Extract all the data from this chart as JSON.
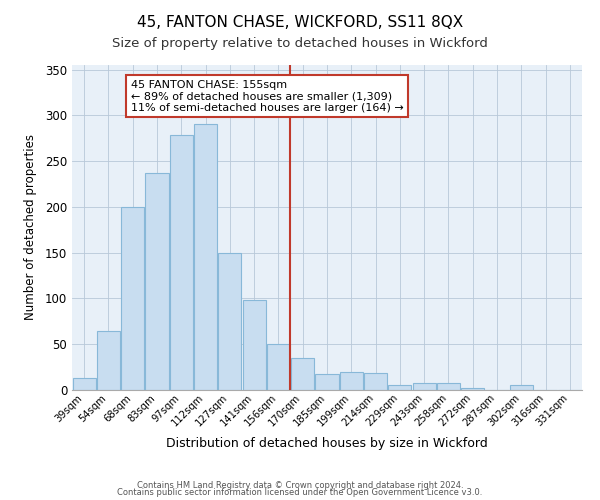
{
  "title": "45, FANTON CHASE, WICKFORD, SS11 8QX",
  "subtitle": "Size of property relative to detached houses in Wickford",
  "xlabel": "Distribution of detached houses by size in Wickford",
  "ylabel": "Number of detached properties",
  "footer_line1": "Contains HM Land Registry data © Crown copyright and database right 2024.",
  "footer_line2": "Contains public sector information licensed under the Open Government Licence v3.0.",
  "bar_labels": [
    "39sqm",
    "54sqm",
    "68sqm",
    "83sqm",
    "97sqm",
    "112sqm",
    "127sqm",
    "141sqm",
    "156sqm",
    "170sqm",
    "185sqm",
    "199sqm",
    "214sqm",
    "229sqm",
    "243sqm",
    "258sqm",
    "272sqm",
    "287sqm",
    "302sqm",
    "316sqm",
    "331sqm"
  ],
  "bar_values": [
    13,
    64,
    200,
    237,
    278,
    291,
    150,
    98,
    50,
    35,
    18,
    20,
    19,
    5,
    8,
    8,
    2,
    0,
    5,
    0,
    0
  ],
  "bar_color": "#c8ddf0",
  "bar_edge_color": "#88b8d8",
  "plot_bg_color": "#e8f0f8",
  "highlight_color": "#c0392b",
  "annotation_title": "45 FANTON CHASE: 155sqm",
  "annotation_line1": "← 89% of detached houses are smaller (1,309)",
  "annotation_line2": "11% of semi-detached houses are larger (164) →",
  "annotation_box_color": "#ffffff",
  "annotation_box_edge": "#c0392b",
  "ylim": [
    0,
    355
  ],
  "yticks": [
    0,
    50,
    100,
    150,
    200,
    250,
    300,
    350
  ]
}
